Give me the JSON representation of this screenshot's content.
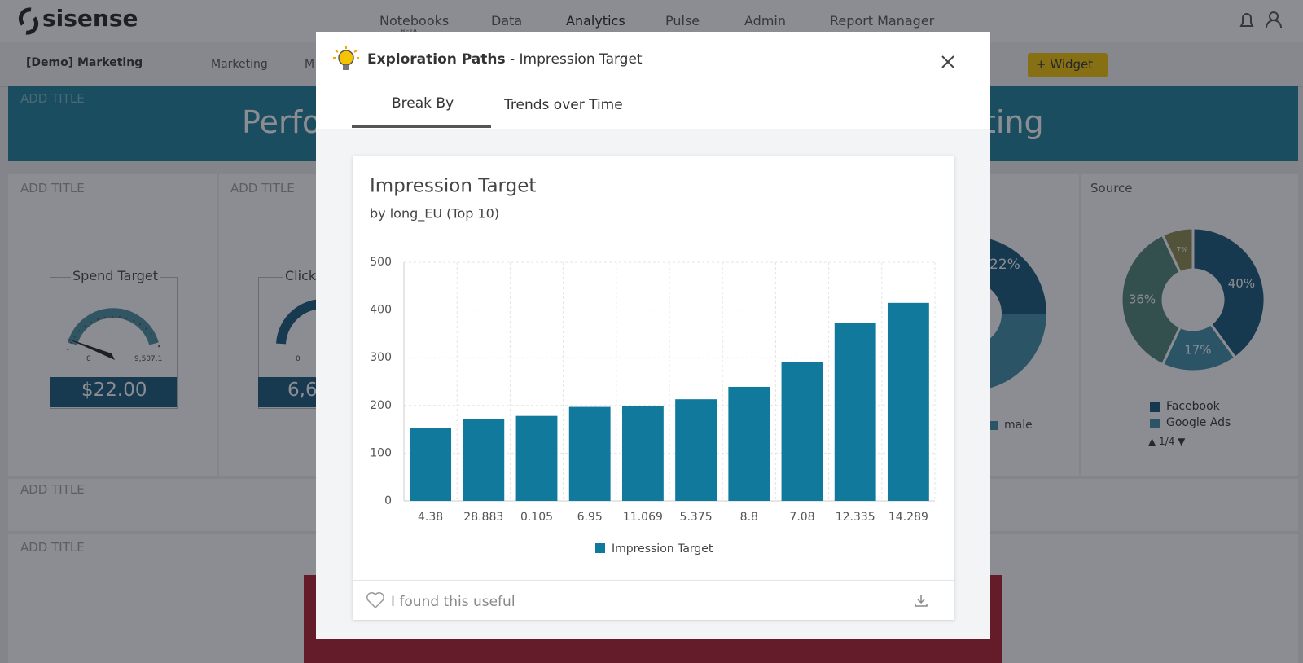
{
  "nav": {
    "logo": "sisense",
    "items": [
      "Notebooks",
      "Data",
      "Analytics",
      "Pulse",
      "Admin",
      "Report Manager"
    ],
    "beta": "BETA"
  },
  "toolbar": {
    "dashboard": "[Demo] Marketing",
    "folder": "Marketing",
    "more": "M",
    "widget_button": "Widget"
  },
  "banner": {
    "label": "ADD TITLE",
    "title_left": "Perfo",
    "title_right": "ting"
  },
  "widgets": {
    "titles": [
      "ADD TITLE",
      "ADD TITLE",
      "Source",
      "ADD TITLE",
      "ADD TITLE"
    ],
    "spend": {
      "title": "Spend Target",
      "min": "0",
      "max": "9,507.1",
      "value": "$22.00"
    },
    "click": {
      "title": "Click",
      "min": "0",
      "value": "6,6"
    },
    "gender": {
      "label": "22%",
      "legend": "male"
    },
    "source": {
      "type": "pie",
      "values": [
        40,
        17,
        36,
        7
      ],
      "value_labels": [
        "40%",
        "17%",
        "36%",
        "7%"
      ],
      "colors": [
        "#12577a",
        "#3c8ea6",
        "#4f8476",
        "#8c8a4c"
      ],
      "legend": [
        "Facebook",
        "Google Ads"
      ],
      "pager": "1/4"
    }
  },
  "modal": {
    "title": "Exploration Paths",
    "subtitle": "- Impression Target",
    "tabs": [
      "Break By",
      "Trends over Time"
    ],
    "feedback": "I found this useful"
  },
  "chart_data": {
    "type": "bar",
    "title": "Impression Target",
    "subtitle": "by long_EU (Top 10)",
    "categories": [
      "4.38",
      "28.883",
      "0.105",
      "6.95",
      "11.069",
      "5.375",
      "8.8",
      "7.08",
      "12.335",
      "14.289"
    ],
    "series": [
      {
        "name": "Impression Target",
        "color": "#117a9c",
        "values": [
          153,
          172,
          178,
          197,
          199,
          213,
          239,
          291,
          373,
          415
        ]
      }
    ],
    "ylim": [
      0,
      500
    ],
    "yticks": [
      0,
      100,
      200,
      300,
      400,
      500
    ],
    "grid": true
  }
}
